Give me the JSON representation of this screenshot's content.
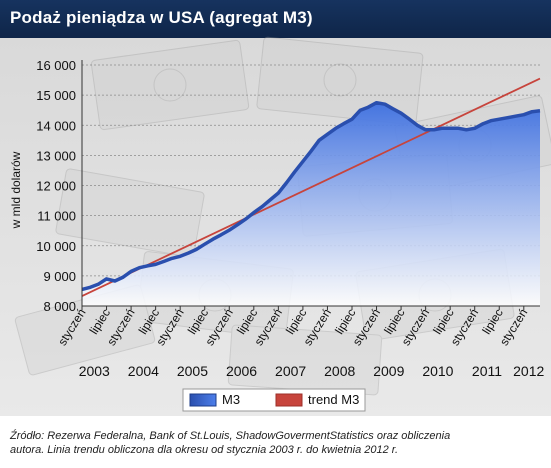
{
  "header": {
    "title": "Podaż pieniądza w USA (agregat M3)"
  },
  "footer": {
    "source_line1": "Źródło: Rezerwa Federalna, Bank of St.Louis, ShadowGovermentStatistics oraz obliczenia",
    "source_line2": "autora. Linia trendu obliczona dla okresu od stycznia 2003 r. do kwietnia 2012 r."
  },
  "colors": {
    "m3_line": "#2a4fae",
    "m3_fill_top": "#3d6fe0",
    "m3_fill_bottom": "#ffffff",
    "trend_line": "#c7443c",
    "title_bar": "#16335f"
  },
  "chart_data": {
    "type": "area",
    "title": "Podaż pieniądza w USA (agregat M3)",
    "ylabel": "w mld dolarów",
    "xlabel": "",
    "ylim": [
      8000,
      16000
    ],
    "yticks": [
      "8 000",
      "9 000",
      "10 000",
      "11 000",
      "12 000",
      "13 000",
      "14 000",
      "15 000",
      "16 000"
    ],
    "ytick_values": [
      8000,
      9000,
      10000,
      11000,
      12000,
      13000,
      14000,
      15000,
      16000
    ],
    "grid": true,
    "legend_position": "bottom",
    "x_range": [
      2003.0,
      2012.33
    ],
    "month_ticks": [
      {
        "label": "styczeń",
        "x": 2003.0
      },
      {
        "label": "lipiec",
        "x": 2003.5
      },
      {
        "label": "styczeń",
        "x": 2004.0
      },
      {
        "label": "lipiec",
        "x": 2004.5
      },
      {
        "label": "styczeń",
        "x": 2005.0
      },
      {
        "label": "lipiec",
        "x": 2005.5
      },
      {
        "label": "styczeń",
        "x": 2006.0
      },
      {
        "label": "lipiec",
        "x": 2006.5
      },
      {
        "label": "styczeń",
        "x": 2007.0
      },
      {
        "label": "lipiec",
        "x": 2007.5
      },
      {
        "label": "styczeń",
        "x": 2008.0
      },
      {
        "label": "lipiec",
        "x": 2008.5
      },
      {
        "label": "styczeń",
        "x": 2009.0
      },
      {
        "label": "lipiec",
        "x": 2009.5
      },
      {
        "label": "styczeń",
        "x": 2010.0
      },
      {
        "label": "lipiec",
        "x": 2010.5
      },
      {
        "label": "styczeń",
        "x": 2011.0
      },
      {
        "label": "lipiec",
        "x": 2011.5
      },
      {
        "label": "styczeń",
        "x": 2012.0
      }
    ],
    "year_labels": [
      {
        "label": "2003",
        "x": 2003.25
      },
      {
        "label": "2004",
        "x": 2004.25
      },
      {
        "label": "2005",
        "x": 2005.25
      },
      {
        "label": "2006",
        "x": 2006.25
      },
      {
        "label": "2007",
        "x": 2007.25
      },
      {
        "label": "2008",
        "x": 2008.25
      },
      {
        "label": "2009",
        "x": 2009.25
      },
      {
        "label": "2010",
        "x": 2010.25
      },
      {
        "label": "2011",
        "x": 2011.25
      },
      {
        "label": "2012",
        "x": 2012.1
      }
    ],
    "series": [
      {
        "name": "M3",
        "style": "area",
        "x": [
          2003.0,
          2003.17,
          2003.33,
          2003.5,
          2003.67,
          2003.83,
          2004.0,
          2004.17,
          2004.33,
          2004.5,
          2004.67,
          2004.83,
          2005.0,
          2005.17,
          2005.33,
          2005.5,
          2005.67,
          2005.83,
          2006.0,
          2006.17,
          2006.33,
          2006.5,
          2006.67,
          2006.83,
          2007.0,
          2007.17,
          2007.33,
          2007.5,
          2007.67,
          2007.83,
          2008.0,
          2008.17,
          2008.33,
          2008.5,
          2008.67,
          2008.83,
          2009.0,
          2009.17,
          2009.33,
          2009.5,
          2009.67,
          2009.83,
          2010.0,
          2010.17,
          2010.33,
          2010.5,
          2010.67,
          2010.83,
          2011.0,
          2011.17,
          2011.33,
          2011.5,
          2011.67,
          2011.83,
          2012.0,
          2012.17,
          2012.33
        ],
        "values": [
          8550,
          8620,
          8720,
          8900,
          8830,
          8950,
          9150,
          9270,
          9330,
          9380,
          9480,
          9580,
          9650,
          9760,
          9880,
          10050,
          10220,
          10360,
          10520,
          10700,
          10880,
          11100,
          11300,
          11520,
          11750,
          12100,
          12450,
          12800,
          13150,
          13500,
          13700,
          13900,
          14050,
          14200,
          14500,
          14600,
          14750,
          14700,
          14550,
          14400,
          14200,
          14000,
          13850,
          13850,
          13900,
          13900,
          13900,
          13850,
          13900,
          14050,
          14150,
          14200,
          14250,
          14300,
          14350,
          14450,
          14480
        ]
      },
      {
        "name": "trend M3",
        "style": "line",
        "x": [
          2003.0,
          2012.33
        ],
        "values": [
          8330,
          15550
        ]
      }
    ]
  }
}
